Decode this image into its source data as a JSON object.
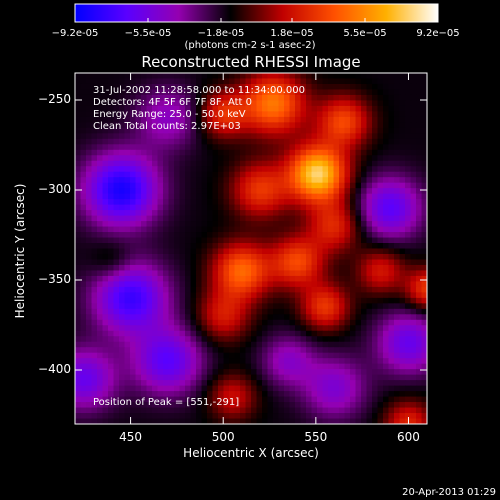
{
  "chart_data": {
    "type": "heatmap",
    "title": "Reconstructed RHESSI Image",
    "xlabel": "Heliocentric X (arcsec)",
    "ylabel": "Heliocentric Y (arcsec)",
    "xlim": [
      420,
      610
    ],
    "ylim": [
      -430,
      -235
    ],
    "xticks": [
      450,
      500,
      550,
      600
    ],
    "yticks": [
      -250,
      -300,
      -350,
      -400
    ],
    "colorbar": {
      "range": [
        -9.2e-05,
        9.2e-05
      ],
      "ticks": [
        {
          "value": -9.2e-05,
          "label": "-9.2e-05"
        },
        {
          "value": -5.5e-05,
          "label": "-5.5e-05"
        },
        {
          "value": -1.8e-05,
          "label": "-1.8e-05"
        },
        {
          "value": 1.8e-05,
          "label": "1.8e-05"
        },
        {
          "value": 5.5e-05,
          "label": "5.5e-05"
        },
        {
          "value": 9.2e-05,
          "label": "9.2e-05"
        }
      ],
      "label": "(photons cm-2 s-1 asec-2)",
      "colors": [
        "#0000ff",
        "#5a00ff",
        "#9400b0",
        "#000000",
        "#c00000",
        "#ff5000",
        "#ffb000",
        "#ffffff"
      ]
    },
    "sources": [
      {
        "x": 551,
        "y": -291,
        "amp": 9.2e-05,
        "sigma": 11
      },
      {
        "x": 527,
        "y": -252,
        "amp": 6.5e-05,
        "sigma": 12
      },
      {
        "x": 500,
        "y": -258,
        "amp": 4.2e-05,
        "sigma": 9
      },
      {
        "x": 565,
        "y": -262,
        "amp": 5e-05,
        "sigma": 10
      },
      {
        "x": 520,
        "y": -300,
        "amp": 4.5e-05,
        "sigma": 11
      },
      {
        "x": 560,
        "y": -320,
        "amp": 4e-05,
        "sigma": 10
      },
      {
        "x": 510,
        "y": -345,
        "amp": 6e-05,
        "sigma": 11
      },
      {
        "x": 540,
        "y": -340,
        "amp": 5e-05,
        "sigma": 10
      },
      {
        "x": 555,
        "y": -365,
        "amp": 4.5e-05,
        "sigma": 9
      },
      {
        "x": 500,
        "y": -370,
        "amp": 3.5e-05,
        "sigma": 10
      },
      {
        "x": 585,
        "y": -345,
        "amp": 3.5e-05,
        "sigma": 9
      },
      {
        "x": 610,
        "y": -355,
        "amp": 4.5e-05,
        "sigma": 8
      },
      {
        "x": 505,
        "y": -415,
        "amp": 3.2e-05,
        "sigma": 9
      },
      {
        "x": 600,
        "y": -430,
        "amp": 4e-05,
        "sigma": 9
      },
      {
        "x": 440,
        "y": -340,
        "amp": 1.5e-05,
        "sigma": 8
      },
      {
        "x": 445,
        "y": -300,
        "amp": -7e-05,
        "sigma": 14
      },
      {
        "x": 450,
        "y": -360,
        "amp": -6e-05,
        "sigma": 14
      },
      {
        "x": 470,
        "y": -395,
        "amp": -5e-05,
        "sigma": 13
      },
      {
        "x": 425,
        "y": -405,
        "amp": -4.5e-05,
        "sigma": 12
      },
      {
        "x": 590,
        "y": -310,
        "amp": -5e-05,
        "sigma": 12
      },
      {
        "x": 600,
        "y": -385,
        "amp": -4.5e-05,
        "sigma": 12
      },
      {
        "x": 560,
        "y": -410,
        "amp": -3.5e-05,
        "sigma": 12
      },
      {
        "x": 470,
        "y": -260,
        "amp": -3e-05,
        "sigma": 12
      },
      {
        "x": 535,
        "y": -395,
        "amp": -3e-05,
        "sigma": 10
      }
    ],
    "annotations": [
      "31-Jul-2002 11:28:58.000 to 11:34:00.000",
      "Detectors: 4F 5F 6F 7F 8F, Att 0",
      "Energy Range: 25.0 - 50.0 keV",
      "Clean     Total counts: 2.97E+03",
      "Position of Peak = [551,-291]"
    ]
  },
  "footer": "20-Apr-2013 01:29"
}
